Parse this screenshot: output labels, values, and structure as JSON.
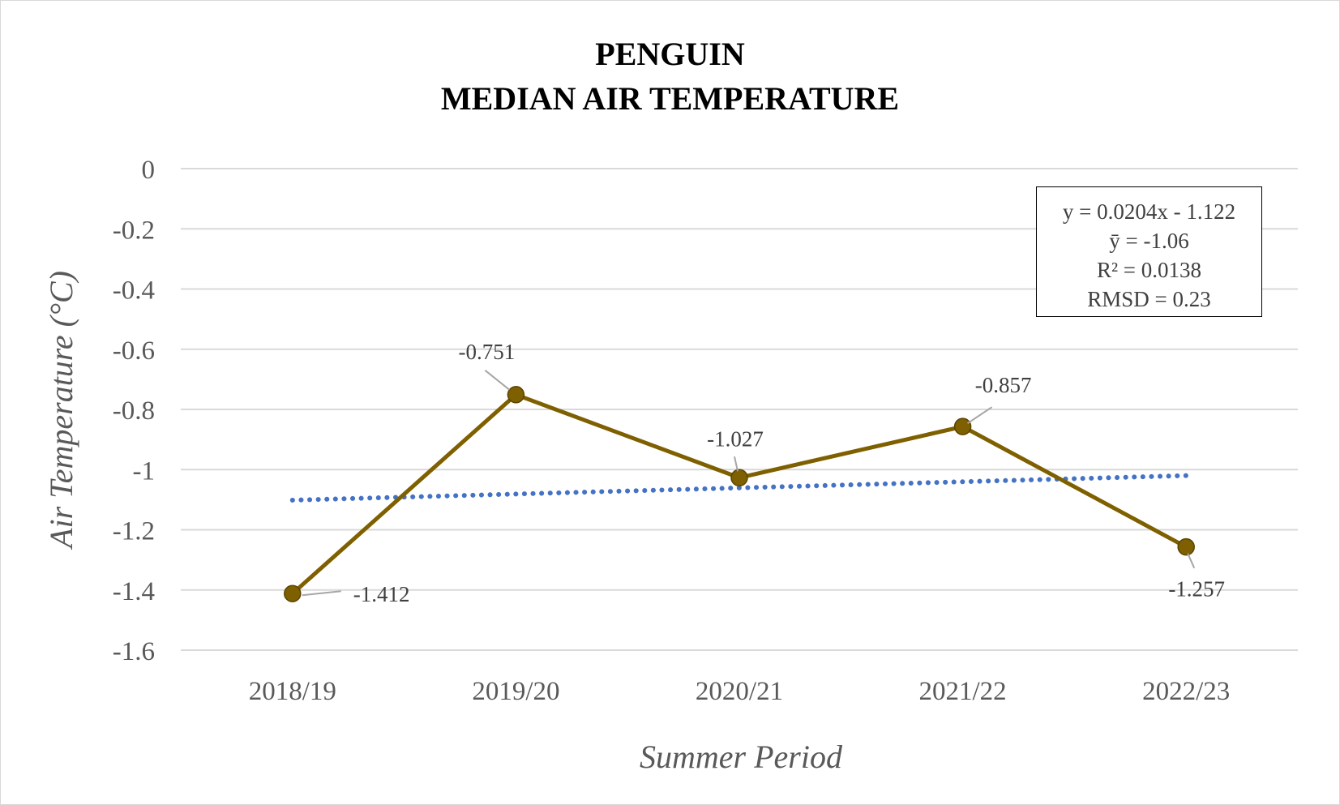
{
  "chart_data": {
    "type": "line",
    "title": [
      "PENGUIN",
      "MEDIAN AIR TEMPERATURE"
    ],
    "xlabel": "Summer Period",
    "ylabel": "Air Temperature (°C)",
    "categories": [
      "2018/19",
      "2019/20",
      "2020/21",
      "2021/22",
      "2022/23"
    ],
    "series": [
      {
        "values": [
          -1.412,
          -0.751,
          -1.027,
          -0.857,
          -1.257
        ],
        "labels": [
          "-1.412",
          "-0.751",
          "-1.027",
          "-0.857",
          "-1.257"
        ],
        "color": "#7f6000",
        "marker": "circle"
      }
    ],
    "trendline": {
      "type": "linear",
      "slope": 0.0204,
      "intercept": -1.122,
      "color": "#4472c4",
      "style": "dotted"
    },
    "stats_box": [
      "y = 0.0204x - 1.122",
      "ȳ = -1.06",
      "R² = 0.0138",
      "RMSD = 0.23"
    ],
    "ylim": [
      -1.6,
      0
    ],
    "yticks": [
      0,
      -0.2,
      -0.4,
      -0.6,
      -0.8,
      -1,
      -1.2,
      -1.4,
      -1.6
    ],
    "ytick_labels": [
      "0",
      "-0.2",
      "-0.4",
      "-0.6",
      "-0.8",
      "-1",
      "-1.2",
      "-1.4",
      "-1.6"
    ],
    "grid": true,
    "legend": "none",
    "gridline_color": "#d9d9d9"
  }
}
